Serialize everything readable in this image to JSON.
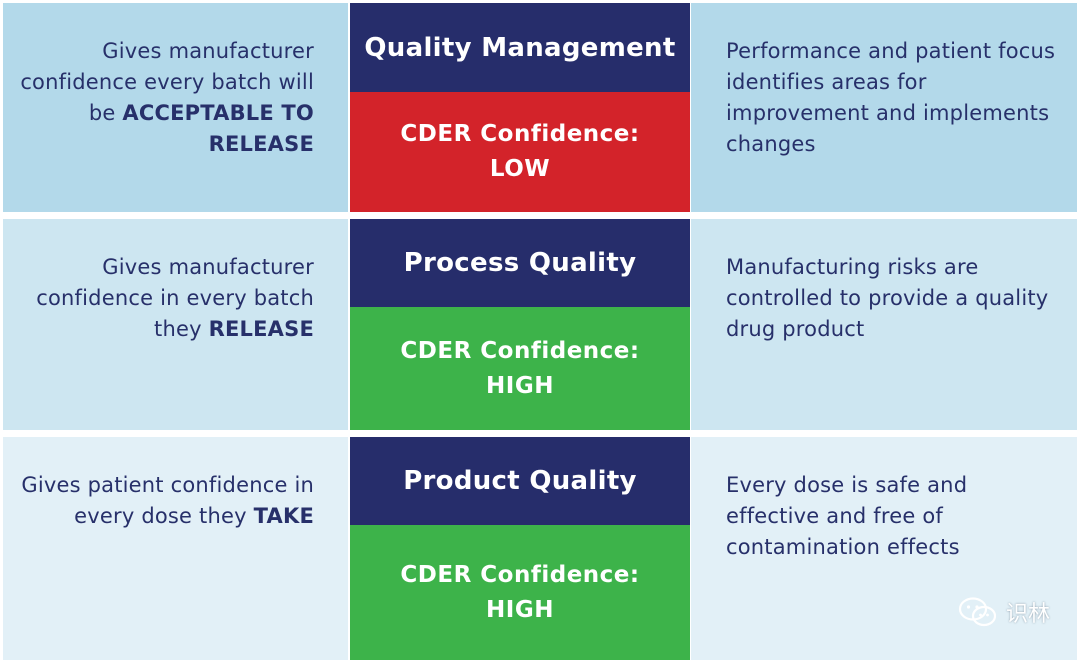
{
  "colors": {
    "title_bg": "#262d6b",
    "low": "#d3232a",
    "high": "#3db34a",
    "text": "#27306a"
  },
  "rows": [
    {
      "title": "Quality Management",
      "confidence_label": "CDER Confidence:",
      "confidence_value": "LOW",
      "left_text": "Gives manufacturer confidence every batch will be ",
      "left_emphasis": "ACCEPTABLE TO RELEASE",
      "right_text": "Performance and patient focus identifies areas for improvement and implements changes"
    },
    {
      "title": "Process Quality",
      "confidence_label": "CDER Confidence:",
      "confidence_value": "HIGH",
      "left_text": "Gives manufacturer confidence in every batch they ",
      "left_emphasis": "RELEASE",
      "right_text": "Manufacturing risks are controlled to provide a quality drug product"
    },
    {
      "title": "Product Quality",
      "confidence_label": "CDER Confidence:",
      "confidence_value": "HIGH",
      "left_text": "Gives patient confidence in every dose they ",
      "left_emphasis": "TAKE",
      "right_text": "Every dose is safe and effective and free of contamination effects"
    }
  ],
  "watermark": {
    "icon": "wechat-icon",
    "text": "识林"
  }
}
